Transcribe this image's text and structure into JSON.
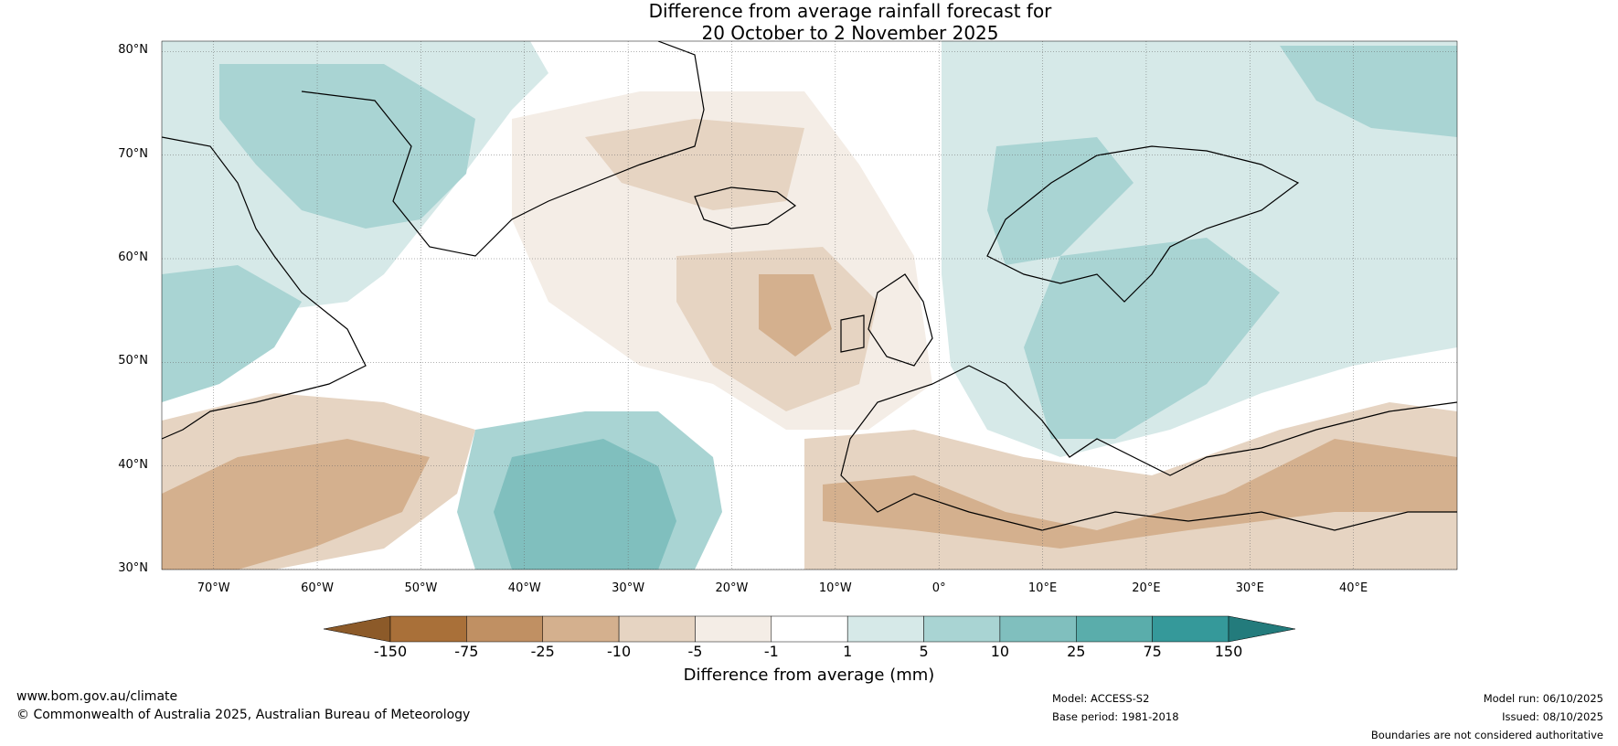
{
  "title": {
    "line1": "Difference from average rainfall forecast for",
    "line2": "20 October to 2 November 2025"
  },
  "map": {
    "lat_labels": [
      "80°N",
      "70°N",
      "60°N",
      "50°N",
      "40°N",
      "30°N"
    ],
    "lon_labels": [
      "70°W",
      "60°W",
      "50°W",
      "40°W",
      "30°W",
      "20°W",
      "10°W",
      "0°",
      "10°E",
      "20°E",
      "30°E",
      "40°E"
    ],
    "lon_range": [
      -75,
      50
    ],
    "lat_range": [
      30,
      81
    ]
  },
  "colorbar": {
    "title": "Difference from average (mm)",
    "ticks": [
      "-150",
      "-75",
      "-25",
      "-10",
      "-5",
      "-1",
      "1",
      "5",
      "10",
      "25",
      "75",
      "150"
    ],
    "colors": [
      "#8c5a29",
      "#a97039",
      "#c09063",
      "#d4b08e",
      "#e6d4c2",
      "#f4ede6",
      "#ffffff",
      "#d6e9e8",
      "#a9d4d3",
      "#80bfbe",
      "#5aadab",
      "#35999a",
      "#237b7c"
    ]
  },
  "footer": {
    "website": "www.bom.gov.au/climate",
    "copyright": "© Commonwealth of Australia 2025, Australian Bureau of Meteorology",
    "model": "Model: ACCESS-S2",
    "base_period": "Base period: 1981-2018",
    "model_run": "Model run: 06/10/2025",
    "issued": "Issued: 08/10/2025",
    "disclaimer": "Boundaries are not considered authoritative"
  }
}
